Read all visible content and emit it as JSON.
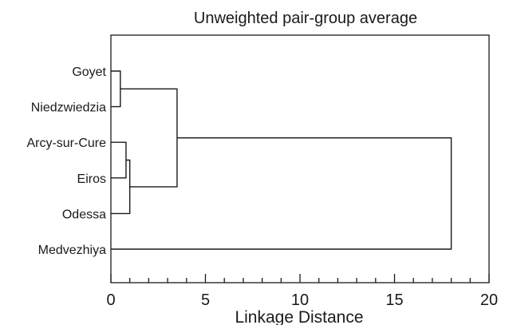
{
  "chart_data": {
    "type": "dendrogram",
    "title": "Unweighted pair-group average",
    "xlabel": "Linkage Distance",
    "ylabel": "",
    "xlim": [
      0,
      20
    ],
    "xticks": [
      0,
      5,
      10,
      15,
      20
    ],
    "minor_tick_step": 1,
    "grid": false,
    "orientation": "horizontal",
    "leaves": [
      "Goyet",
      "Niedzwiedzia",
      "Arcy-sur-Cure",
      "Eiros",
      "Odessa",
      "Medvezhiya"
    ],
    "merges": [
      {
        "left": "Goyet",
        "right": "Niedzwiedzia",
        "distance": 0.5
      },
      {
        "left": "Arcy-sur-Cure",
        "right": "Eiros",
        "distance": 0.8
      },
      {
        "left": "Arcy-sur-Cure+Eiros",
        "right": "Odessa",
        "distance": 1.0
      },
      {
        "left": "Goyet+Niedzwiedzia",
        "right": "Arcy-sur-Cure+Eiros+Odessa",
        "distance": 3.5
      },
      {
        "left": "Goyet+Niedzwiedzia+Arcy-sur-Cure+Eiros+Odessa",
        "right": "Medvezhiya",
        "distance": 18.0
      }
    ]
  }
}
